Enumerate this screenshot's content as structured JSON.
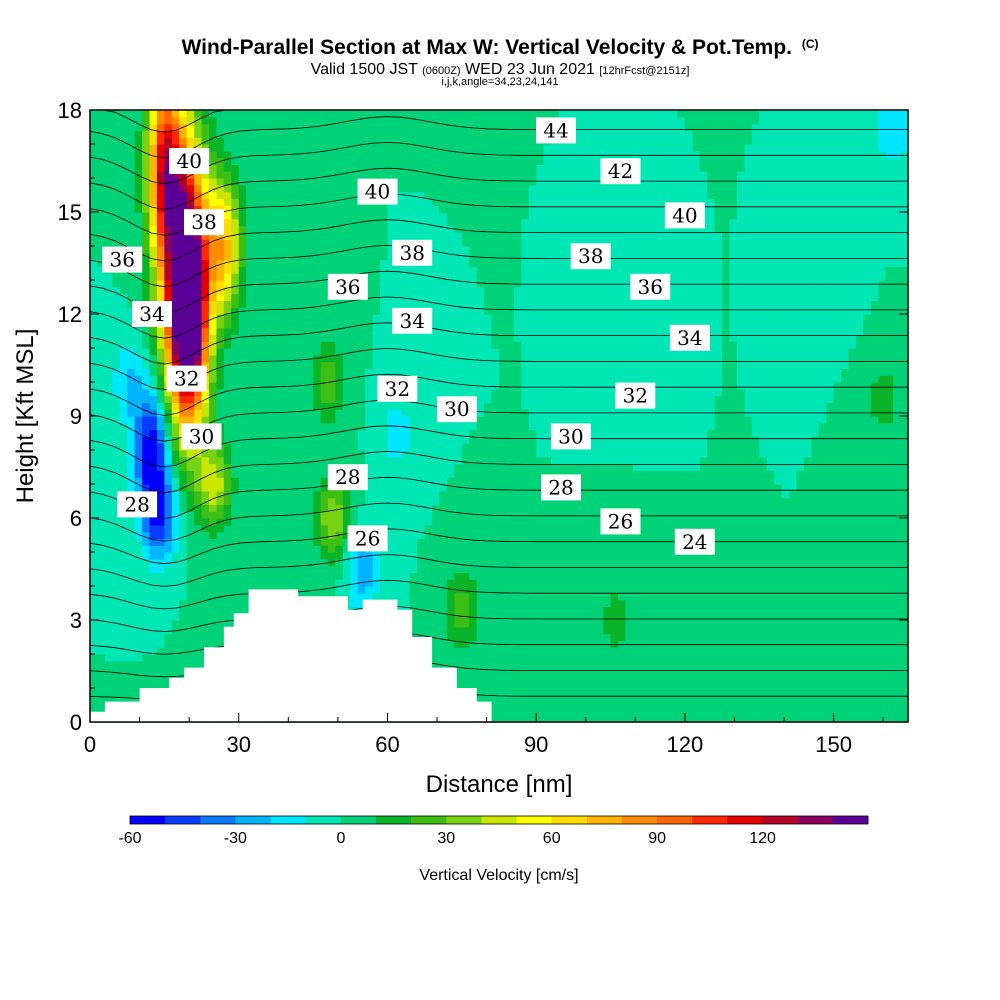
{
  "header": {
    "title": "Wind-Parallel Section at Max W: Vertical Velocity & Pot.Temp.",
    "copyright_mark": "(C)",
    "valid_prefix": "Valid 1500 JST",
    "valid_utc": "(0600Z)",
    "valid_date": "WED 23 Jun 2021",
    "forecast_info": "[12hrFcst@2151z]",
    "indices": "i,j,k,angle=34,23,24,141"
  },
  "chart_data": {
    "type": "heatmap",
    "title": "Wind-Parallel Section at Max W: Vertical Velocity & Pot.Temp.",
    "xlabel": "Distance [nm]",
    "ylabel": "Height [Kft MSL]",
    "xlim": [
      0,
      165
    ],
    "ylim": [
      0,
      18
    ],
    "x_ticks": [
      0,
      30,
      60,
      90,
      120,
      150
    ],
    "y_ticks": [
      0,
      3,
      6,
      9,
      12,
      15,
      18
    ],
    "grid": false,
    "colorbar": {
      "label": "Vertical Velocity [cm/s]",
      "tick_values": [
        -60,
        -30,
        0,
        30,
        60,
        90,
        120
      ],
      "levels": [
        -60,
        -50,
        -40,
        -30,
        -20,
        -10,
        0,
        10,
        20,
        30,
        40,
        50,
        60,
        70,
        80,
        90,
        100,
        110,
        120,
        130,
        140
      ],
      "colors": [
        "#0000ff",
        "#0a3cff",
        "#0a78ff",
        "#00b4ff",
        "#00e6ff",
        "#00e6b4",
        "#00d278",
        "#0ab428",
        "#3cbe14",
        "#78d214",
        "#c8e600",
        "#ffff00",
        "#ffdc00",
        "#ffb400",
        "#ff8c00",
        "#ff6400",
        "#ff2800",
        "#e60000",
        "#b40028",
        "#8c0064",
        "#5a0096"
      ]
    },
    "background_value": 0,
    "vertical_velocity_features": [
      {
        "x": 19,
        "y": 13.5,
        "value": 135
      },
      {
        "x": 20,
        "y": 11.5,
        "value": 105
      },
      {
        "x": 15,
        "y": 16.5,
        "value": 95
      },
      {
        "x": 27,
        "y": 14,
        "value": 70
      },
      {
        "x": 25,
        "y": 7,
        "value": 45
      },
      {
        "x": 12.5,
        "y": 8,
        "value": -60
      },
      {
        "x": 14,
        "y": 6,
        "value": -45
      },
      {
        "x": 8,
        "y": 10,
        "value": -20
      },
      {
        "x": 49,
        "y": 6,
        "value": 40
      },
      {
        "x": 48,
        "y": 10,
        "value": 25
      },
      {
        "x": 62,
        "y": 8.5,
        "value": -15
      },
      {
        "x": 55,
        "y": 4.5,
        "value": -28
      },
      {
        "x": 75,
        "y": 3.3,
        "value": 25
      },
      {
        "x": 160,
        "y": 9.5,
        "value": 15
      },
      {
        "x": 107,
        "y": 12,
        "value": -10
      },
      {
        "x": 150,
        "y": 13,
        "value": -10
      },
      {
        "x": 162,
        "y": 17.5,
        "value": -20
      },
      {
        "x": 106,
        "y": 3,
        "value": 15
      }
    ],
    "terrain": [
      [
        0,
        0.3
      ],
      [
        3,
        0.6
      ],
      [
        10,
        1.0
      ],
      [
        16,
        1.3
      ],
      [
        19,
        1.6
      ],
      [
        23,
        2.2
      ],
      [
        27,
        2.8
      ],
      [
        29,
        3.2
      ],
      [
        32,
        3.9
      ],
      [
        42,
        3.7
      ],
      [
        52,
        3.3
      ],
      [
        55,
        3.6
      ],
      [
        60,
        3.6
      ],
      [
        62,
        3.3
      ],
      [
        65,
        2.5
      ],
      [
        69,
        1.6
      ],
      [
        74,
        1.0
      ],
      [
        78,
        0.6
      ],
      [
        81,
        0.3
      ]
    ],
    "contour_levels": [
      22,
      23,
      24,
      25,
      26,
      27,
      28,
      29,
      30,
      31,
      32,
      33,
      34,
      35,
      36,
      37,
      38,
      39,
      40,
      41,
      42,
      43,
      44,
      45,
      46
    ],
    "contour_labels": [
      {
        "text": "44",
        "x": 94,
        "y": 17.4
      },
      {
        "text": "42",
        "x": 107,
        "y": 16.2
      },
      {
        "text": "40",
        "x": 20,
        "y": 16.5
      },
      {
        "text": "40",
        "x": 58,
        "y": 15.6
      },
      {
        "text": "40",
        "x": 120,
        "y": 14.9
      },
      {
        "text": "38",
        "x": 23,
        "y": 14.7
      },
      {
        "text": "38",
        "x": 65,
        "y": 13.8
      },
      {
        "text": "38",
        "x": 101,
        "y": 13.7
      },
      {
        "text": "36",
        "x": 6.5,
        "y": 13.6
      },
      {
        "text": "36",
        "x": 52,
        "y": 12.8
      },
      {
        "text": "36",
        "x": 113,
        "y": 12.8
      },
      {
        "text": "34",
        "x": 12.5,
        "y": 12.0
      },
      {
        "text": "34",
        "x": 65,
        "y": 11.8
      },
      {
        "text": "34",
        "x": 121,
        "y": 11.3
      },
      {
        "text": "32",
        "x": 19.5,
        "y": 10.1
      },
      {
        "text": "32",
        "x": 62,
        "y": 9.8
      },
      {
        "text": "32",
        "x": 110,
        "y": 9.6
      },
      {
        "text": "30",
        "x": 22.5,
        "y": 8.4
      },
      {
        "text": "30",
        "x": 74,
        "y": 9.2
      },
      {
        "text": "30",
        "x": 97,
        "y": 8.4
      },
      {
        "text": "28",
        "x": 9.5,
        "y": 6.4
      },
      {
        "text": "28",
        "x": 52,
        "y": 7.2
      },
      {
        "text": "28",
        "x": 95,
        "y": 6.9
      },
      {
        "text": "26",
        "x": 56,
        "y": 5.4
      },
      {
        "text": "26",
        "x": 107,
        "y": 5.9
      },
      {
        "text": "24",
        "x": 122,
        "y": 5.3
      }
    ]
  }
}
